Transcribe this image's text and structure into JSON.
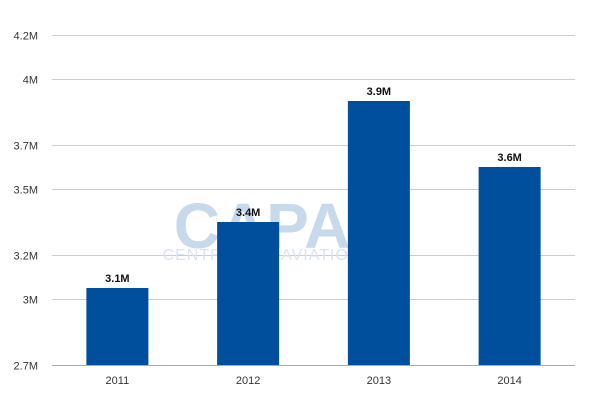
{
  "watermark": {
    "logo": "CAPA",
    "tagline": "CENTRE FOR AVIATION"
  },
  "chart_data": {
    "type": "bar",
    "title": "",
    "xlabel": "",
    "ylabel": "",
    "categories": [
      "2011",
      "2012",
      "2013",
      "2014"
    ],
    "values": [
      3050000,
      3350000,
      3900000,
      3600000
    ],
    "data_labels": [
      "3.1M",
      "3.4M",
      "3.9M",
      "3.6M"
    ],
    "ylim": [
      2700000,
      4200000
    ],
    "y_ticks": [
      {
        "value": 2700000,
        "label": "2.7M"
      },
      {
        "value": 3000000,
        "label": "3M"
      },
      {
        "value": 3200000,
        "label": "3.2M"
      },
      {
        "value": 3500000,
        "label": "3.5M"
      },
      {
        "value": 3700000,
        "label": "3.7M"
      },
      {
        "value": 4000000,
        "label": "4M"
      },
      {
        "value": 4200000,
        "label": "4.2M"
      }
    ],
    "grid": true,
    "legend": "none",
    "bar_color": "#004f9c",
    "grid_color": "#cccccc"
  }
}
